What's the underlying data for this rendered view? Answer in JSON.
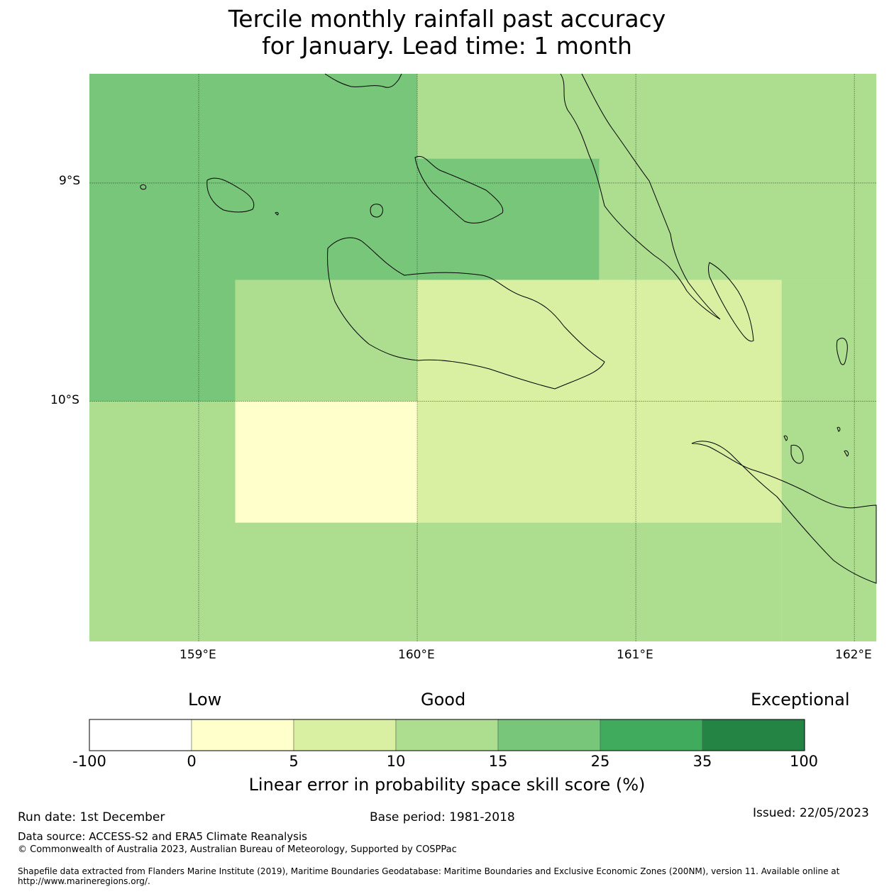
{
  "title_line1": "Tercile monthly rainfall past accuracy",
  "title_line2": "for January. Lead time: 1 month",
  "map": {
    "lon_range": [
      158.5,
      162.1
    ],
    "lat_range": [
      -11.1,
      -8.5
    ],
    "lat_labels": [
      "9°S",
      "10°S"
    ],
    "lon_labels": [
      "159°E",
      "160°E",
      "161°E",
      "162°E"
    ],
    "gridlines": true,
    "grid_cells": [
      {
        "category": "15-25",
        "color": "#78c679",
        "lon": [
          158.5,
          160.0
        ],
        "lat": [
          -10.0,
          -8.5
        ]
      },
      {
        "category": "10-15",
        "color": "#addd8e",
        "lon": [
          160.0,
          162.1
        ],
        "lat": [
          -8.9,
          -8.5
        ]
      },
      {
        "category": "15-25",
        "color": "#78c679",
        "lon": [
          160.0,
          160.833
        ],
        "lat": [
          -9.444,
          -8.889
        ]
      },
      {
        "category": "10-15",
        "color": "#addd8e",
        "lon": [
          160.833,
          162.1
        ],
        "lat": [
          -9.444,
          -8.889
        ]
      },
      {
        "category": "10-15",
        "color": "#addd8e",
        "lon": [
          159.167,
          160.0
        ],
        "lat": [
          -10.0,
          -9.444
        ]
      },
      {
        "category": "5-10",
        "color": "#d9f0a3",
        "lon": [
          160.0,
          161.667
        ],
        "lat": [
          -10.556,
          -9.444
        ]
      },
      {
        "category": "10-15",
        "color": "#addd8e",
        "lon": [
          161.667,
          162.1
        ],
        "lat": [
          -11.1,
          -9.444
        ]
      },
      {
        "category": "0-5",
        "color": "#ffffcc",
        "lon": [
          159.167,
          160.0
        ],
        "lat": [
          -10.556,
          -10.0
        ]
      },
      {
        "category": "10-15",
        "color": "#addd8e",
        "lon": [
          158.5,
          159.167
        ],
        "lat": [
          -11.1,
          -10.0
        ]
      },
      {
        "category": "10-15",
        "color": "#addd8e",
        "lon": [
          159.167,
          161.667
        ],
        "lat": [
          -11.1,
          -10.556
        ]
      }
    ]
  },
  "colorbar": {
    "category_labels": [
      "Low",
      "Good",
      "Exceptional"
    ],
    "ticks": [
      "-100",
      "0",
      "5",
      "10",
      "15",
      "25",
      "35",
      "100"
    ],
    "colors": [
      "#ffffff",
      "#ffffcc",
      "#d9f0a3",
      "#addd8e",
      "#78c679",
      "#41ab5d",
      "#238443"
    ],
    "title": "Linear error in probability space skill score (%)"
  },
  "footer": {
    "run_date": "Run date: 1st December",
    "base_period": "Base period: 1981-2018",
    "issued": "Issued: 22/05/2023",
    "data_source": "Data source: ACCESS-S2 and ERA5 Climate Reanalysis",
    "copyright": "© Commonwealth of Australia 2023, Australian Bureau of Meteorology, Supported by COSPPac",
    "shapefile": "Shapefile data extracted from Flanders Marine Institute (2019), Maritime Boundaries Geodatabase: Maritime Boundaries and Exclusive Economic Zones (200NM), version 11. Available online at http://www.marineregions.org/."
  },
  "islands": [
    "Florida Islands",
    "Guadalcanal",
    "Santa Isabel",
    "Malaita",
    "Makira",
    "Savo",
    "Russell Islands"
  ]
}
